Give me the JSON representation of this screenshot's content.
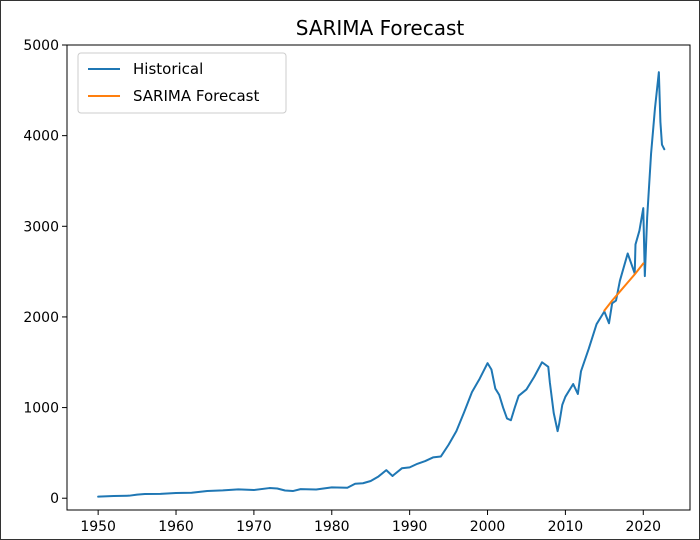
{
  "chart_data": {
    "type": "line",
    "title": "SARIMA Forecast",
    "xlabel": "",
    "ylabel": "",
    "xlim": [
      1946,
      2026
    ],
    "ylim": [
      -130,
      5000
    ],
    "x_ticks": [
      1950,
      1960,
      1970,
      1980,
      1990,
      2000,
      2010,
      2020
    ],
    "y_ticks": [
      0,
      1000,
      2000,
      3000,
      4000,
      5000
    ],
    "grid": false,
    "legend_position": "top-left",
    "series": [
      {
        "name": "Historical",
        "color": "#1f77b4",
        "x": [
          1950,
          1952,
          1954,
          1955,
          1956,
          1958,
          1960,
          1962,
          1964,
          1966,
          1968,
          1970,
          1972,
          1973,
          1974,
          1975,
          1976,
          1978,
          1980,
          1982,
          1983,
          1984,
          1985,
          1986,
          1987,
          1987.8,
          1988,
          1989,
          1990,
          1991,
          1992,
          1993,
          1994,
          1995,
          1996,
          1997,
          1998,
          1999,
          2000,
          2000.5,
          2001,
          2001.5,
          2002,
          2002.5,
          2003,
          2003.5,
          2004,
          2005,
          2006,
          2007,
          2007.8,
          2008,
          2008.5,
          2009,
          2009.2,
          2009.6,
          2010,
          2011,
          2011.6,
          2012,
          2013,
          2014,
          2015,
          2015.6,
          2016,
          2016.5,
          2017,
          2018,
          2018.9,
          2019,
          2019.5,
          2020,
          2020.2,
          2020.5,
          2021,
          2021.5,
          2022,
          2022.2,
          2022.4,
          2022.7
        ],
        "y": [
          17,
          24,
          28,
          40,
          46,
          48,
          57,
          60,
          80,
          87,
          98,
          90,
          112,
          107,
          85,
          79,
          100,
          96,
          120,
          115,
          160,
          165,
          190,
          240,
          310,
          245,
          260,
          330,
          340,
          380,
          410,
          450,
          460,
          590,
          740,
          950,
          1170,
          1320,
          1490,
          1420,
          1210,
          1140,
          1000,
          880,
          860,
          1000,
          1130,
          1200,
          1340,
          1500,
          1450,
          1280,
          940,
          740,
          820,
          1030,
          1120,
          1260,
          1150,
          1400,
          1650,
          1920,
          2060,
          1930,
          2150,
          2180,
          2400,
          2700,
          2480,
          2800,
          2950,
          3200,
          2450,
          3100,
          3800,
          4300,
          4700,
          4150,
          3900,
          3850
        ]
      },
      {
        "name": "SARIMA Forecast",
        "color": "#ff7f0e",
        "x": [
          2015,
          2016,
          2017,
          2018,
          2019,
          2020
        ],
        "y": [
          2070,
          2180,
          2280,
          2380,
          2480,
          2590
        ]
      }
    ]
  }
}
